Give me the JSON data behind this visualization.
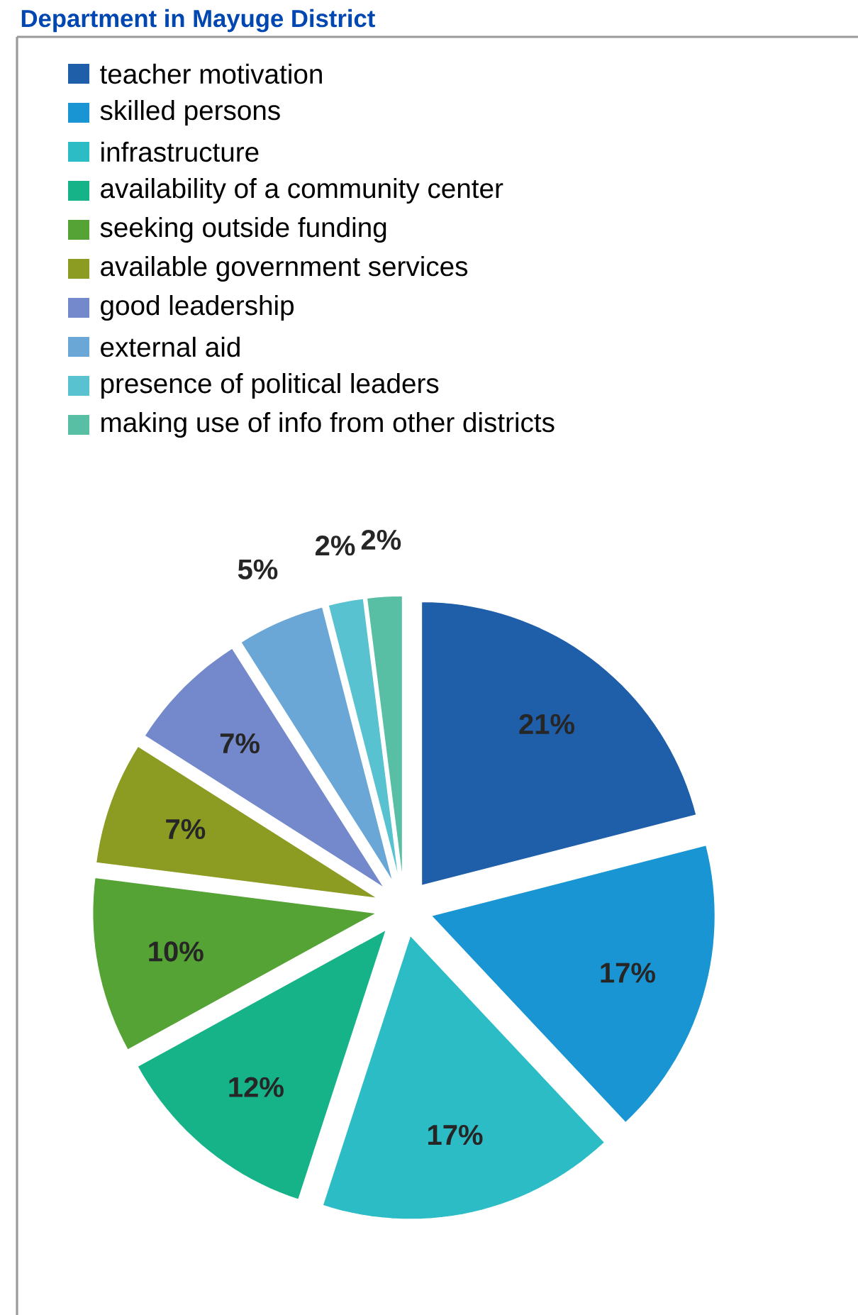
{
  "chart_data": {
    "type": "pie",
    "title": "Department in Mayuge District",
    "categories": [
      "teacher motivation",
      "skilled persons",
      "infrastructure",
      "availability of a community center",
      "seeking outside funding",
      "available government services",
      "good leadership",
      "external aid",
      "presence of political leaders",
      "making use of info from other districts"
    ],
    "values": [
      21,
      17,
      17,
      12,
      10,
      7,
      7,
      5,
      2,
      2
    ],
    "colors": [
      "#1f5ea8",
      "#1a95d4",
      "#2cbcc6",
      "#17b388",
      "#55a335",
      "#8c9c22",
      "#7389cc",
      "#6aa6d6",
      "#58c2d0",
      "#58bea4"
    ],
    "value_labels": [
      "21%",
      "17%",
      "17%",
      "12%",
      "10%",
      "7%",
      "7%",
      "5%",
      "2%",
      "2%"
    ],
    "legend": "top"
  }
}
